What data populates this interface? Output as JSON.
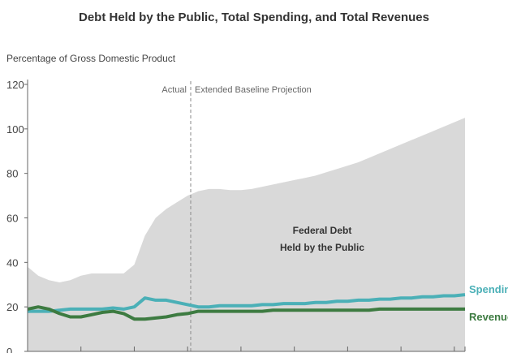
{
  "chart_data": {
    "type": "area",
    "title": "Debt Held by the Public, Total Spending, and Total Revenues",
    "ylabel": "Percentage of Gross Domestic Product",
    "xlabel": "",
    "ylim": [
      0,
      120
    ],
    "yticks": [
      0,
      20,
      40,
      60,
      80,
      100,
      120
    ],
    "grid": false,
    "divider": {
      "label_left": "Actual",
      "label_right": "Extended Baseline Projection"
    },
    "area_annotation": [
      "Federal Debt",
      "Held by the Public"
    ],
    "series": [
      {
        "name": "Federal Debt Held by the Public",
        "kind": "area",
        "color": "#d9d9d9",
        "values": [
          38,
          34,
          32,
          31,
          32,
          34,
          35,
          35,
          35,
          35,
          39,
          52,
          60,
          64,
          67,
          70,
          72,
          73,
          73,
          72.5,
          72.5,
          73,
          74,
          75,
          76,
          77,
          78,
          79,
          80.5,
          82,
          83.5,
          85,
          87,
          89,
          91,
          93,
          95,
          97,
          99,
          101,
          103,
          105
        ]
      },
      {
        "name": "Spending",
        "kind": "line",
        "color": "#4bb0b7",
        "values": [
          18,
          18,
          18,
          18.5,
          19,
          19,
          19,
          19,
          19.5,
          19,
          20,
          24,
          23,
          23,
          22,
          21,
          20,
          20,
          20.5,
          20.5,
          20.5,
          20.5,
          21,
          21,
          21.5,
          21.5,
          21.5,
          22,
          22,
          22.5,
          22.5,
          23,
          23,
          23.5,
          23.5,
          24,
          24,
          24.5,
          24.5,
          25,
          25,
          25.5
        ]
      },
      {
        "name": "Revenues",
        "kind": "line",
        "color": "#3d7b41",
        "values": [
          19,
          20,
          19,
          17,
          15.5,
          15.5,
          16.5,
          17.5,
          18,
          17,
          14.5,
          14.5,
          15,
          15.5,
          16.5,
          17,
          18,
          18,
          18,
          18,
          18,
          18,
          18,
          18.5,
          18.5,
          18.5,
          18.5,
          18.5,
          18.5,
          18.5,
          18.5,
          18.5,
          18.5,
          19,
          19,
          19,
          19,
          19,
          19,
          19,
          19,
          19
        ]
      }
    ]
  }
}
